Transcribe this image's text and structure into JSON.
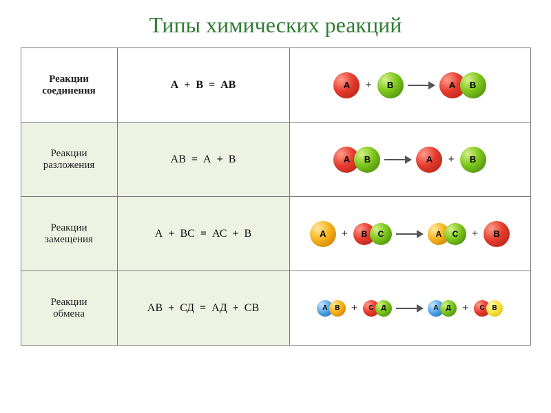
{
  "title": "Типы химических реакций",
  "colors": {
    "title": "#2e7d32",
    "border": "#7a7a7a",
    "alt_bg": "#eef2e3",
    "red": "radial-gradient(circle at 30% 28%, #ff9c8a 0%, #e63c2e 45%, #a81e12 100%)",
    "green": "radial-gradient(circle at 30% 28%, #d4f08a 0%, #7cc61a 45%, #3f7a0c 100%)",
    "yellow_o": "radial-gradient(circle at 30% 28%, #ffe9a0 0%, #f8b21a 45%, #b87708 100%)",
    "yellow_b": "radial-gradient(circle at 30% 28%, #fff6b0 0%, #f9e23a 50%, #cbb418 100%)",
    "blue": "radial-gradient(circle at 30% 28%, #c5e4ff 0%, #4fa2e6 50%, #1e5fa0 100%)"
  },
  "rows": [
    {
      "name_html": "<b>Реакции</b><br><b>соединения</b>",
      "alt": false,
      "equation_html": "<b>А&nbsp; +&nbsp; В&nbsp; =&nbsp; АВ</b>",
      "diagram": "combine"
    },
    {
      "name_html": "Реакции<br>разложения",
      "alt": true,
      "equation_html": "АВ&nbsp; <b>=</b>&nbsp; А&nbsp; <b>+</b>&nbsp; В",
      "diagram": "decompose"
    },
    {
      "name_html": "Реакции<br>замещения",
      "alt": true,
      "equation_html": "А&nbsp; <b>+</b>&nbsp; ВС&nbsp; <b>=</b>&nbsp; АС&nbsp; <b>+</b>&nbsp; В",
      "diagram": "substitute"
    },
    {
      "name_html": "Реакции<br>обмена",
      "alt": true,
      "equation_html": "АВ&nbsp; <b>+</b>&nbsp; СД&nbsp; <b>=</b>&nbsp; АД&nbsp; <b>+</b>&nbsp; СВ",
      "diagram": "exchange"
    }
  ],
  "labels": {
    "A": "А",
    "B": "В",
    "C": "С",
    "D": "Д"
  }
}
